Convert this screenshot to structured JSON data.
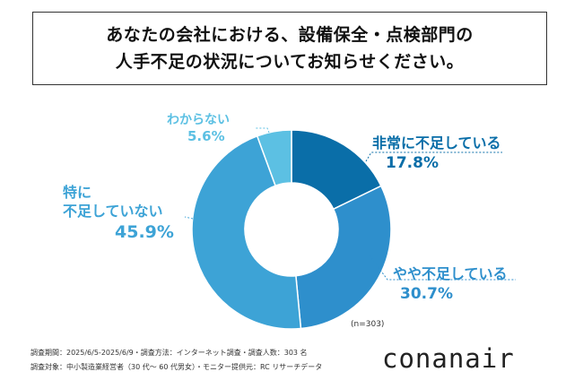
{
  "title": {
    "line1": "あなたの会社における、設備保全・点検部門の",
    "line2": "人手不足の状況についてお知らせください。"
  },
  "chart_data": {
    "type": "pie",
    "donut": true,
    "categories": [
      "非常に不足している",
      "やや不足している",
      "特に不足していない",
      "わからない"
    ],
    "values": [
      17.8,
      30.7,
      45.9,
      5.6
    ],
    "value_labels": [
      "17.8%",
      "30.7%",
      "45.9%",
      "5.6%"
    ],
    "colors": [
      "#0a6ea8",
      "#2e8fcc",
      "#3da3d6",
      "#5cc0e3"
    ],
    "label_colors": [
      "#0a6ea8",
      "#2e8fcc",
      "#3da3d6",
      "#5cc0e3"
    ],
    "sample_note": "(n=303)"
  },
  "labels": {
    "very_short": {
      "name": "非常に不足している",
      "pct": "17.8%"
    },
    "somewhat_short": {
      "name": "やや不足している",
      "pct": "30.7%"
    },
    "not_short_line1": "特に",
    "not_short_line2": "不足していない",
    "not_short_pct": "45.9%",
    "unknown": {
      "name": "わからない",
      "pct": "5.6%"
    }
  },
  "footer": {
    "line1": "調査期間：2025/6/5-2025/6/9・調査方法：インターネット調査・調査人数：303 名",
    "line2": "調査対象：中小製造業経営者（30 代～ 60 代男女）・モニター提供元：RC リサーチデータ"
  },
  "logo": "conanair"
}
